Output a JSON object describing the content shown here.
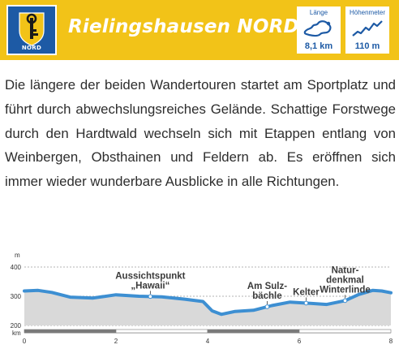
{
  "header": {
    "title": "Rielingshausen NORD",
    "crest_label": "NORD",
    "colors": {
      "banner": "#f2c318",
      "crest": "#1d5aa5",
      "accent": "#1d5aa5"
    }
  },
  "stats": [
    {
      "label": "Länge",
      "value": "8,1 km",
      "icon": "route-map-icon"
    },
    {
      "label": "Höhenmeter",
      "value": "110 m",
      "icon": "elevation-profile-icon"
    }
  ],
  "description": "Die längere der beiden Wandertouren startet am Sportplatz und führt durch abwechslungsreiches Gelände. Schattige Forstwege durch den Hardtwald wechseln sich mit Etappen entlang von Weinbergen, Obsthainen und Feldern ab. Es eröffnen sich immer wieder wunderbare Ausblicke in alle Richtungen.",
  "chart_data": {
    "type": "area",
    "ylabel": "m",
    "xlabel": "km",
    "ylim": [
      200,
      400
    ],
    "xlim": [
      0,
      8
    ],
    "yticks": [
      "400",
      "300",
      "200"
    ],
    "xticks": [
      "0",
      "2",
      "4",
      "6",
      "8"
    ],
    "x": [
      0,
      0.3,
      0.6,
      1.0,
      1.5,
      2.0,
      2.5,
      3.0,
      3.5,
      3.9,
      4.1,
      4.3,
      4.6,
      5.0,
      5.4,
      5.8,
      6.2,
      6.6,
      7.0,
      7.3,
      7.6,
      7.8,
      8.0
    ],
    "y": [
      318,
      320,
      313,
      297,
      294,
      305,
      300,
      298,
      290,
      282,
      250,
      238,
      248,
      252,
      268,
      280,
      276,
      272,
      285,
      306,
      320,
      318,
      312
    ],
    "points_of_interest": [
      {
        "label_lines": [
          "Aussichtspunkt",
          "„Hawaii“"
        ],
        "x": 2.75
      },
      {
        "label_lines": [
          "Am Sulz-",
          "bächle"
        ],
        "x": 5.3
      },
      {
        "label_lines": [
          "Kelter"
        ],
        "x": 6.15
      },
      {
        "label_lines": [
          "Natur-",
          "denkmal",
          "Winterlinde"
        ],
        "x": 7.0
      }
    ]
  }
}
